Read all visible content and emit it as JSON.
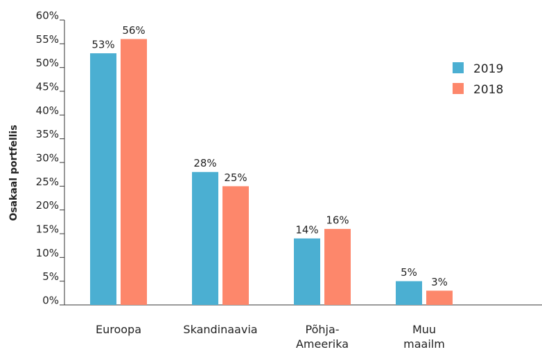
{
  "chart_data": {
    "type": "bar",
    "y_label": "Osakaal portfellis",
    "categories": [
      "Euroopa",
      "Skandinaavia",
      "Põhja-\nAmeerika",
      "Muu\nmaailm"
    ],
    "series": [
      {
        "name": "2019",
        "color": "#4bafd2",
        "values": [
          53,
          28,
          14,
          5
        ],
        "value_labels": [
          "53%",
          "28%",
          "14%",
          "5%"
        ]
      },
      {
        "name": "2018",
        "color": "#fd876b",
        "values": [
          56,
          25,
          16,
          3
        ],
        "value_labels": [
          "56%",
          "25%",
          "16%",
          "3%"
        ]
      }
    ],
    "ylim": [
      0,
      60
    ],
    "yticks": [
      {
        "value": 0,
        "label": "0%"
      },
      {
        "value": 5,
        "label": "5%"
      },
      {
        "value": 10,
        "label": "10%"
      },
      {
        "value": 15,
        "label": "15%"
      },
      {
        "value": 20,
        "label": "20%"
      },
      {
        "value": 25,
        "label": "25%"
      },
      {
        "value": 30,
        "label": "30%"
      },
      {
        "value": 35,
        "label": "35%"
      },
      {
        "value": 40,
        "label": "40%"
      },
      {
        "value": 45,
        "label": "45%"
      },
      {
        "value": 50,
        "label": "50%"
      },
      {
        "value": 55,
        "label": "55%"
      },
      {
        "value": 60,
        "label": "60%"
      }
    ],
    "grid": false,
    "legend": "upper right"
  }
}
